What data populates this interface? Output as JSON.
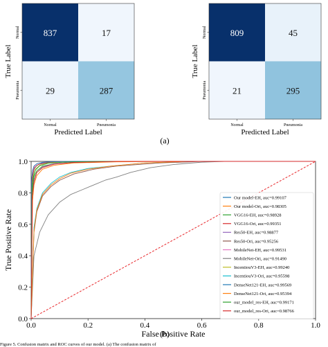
{
  "chart_data": [
    {
      "type": "heatmap",
      "panel": "a-left",
      "xlabel": "Predicted Label",
      "ylabel": "True Label",
      "x_categories": [
        "Normal",
        "Pneumonia"
      ],
      "y_categories": [
        "Normal",
        "Pneumonia"
      ],
      "matrix": [
        [
          837,
          17
        ],
        [
          29,
          287
        ]
      ],
      "colors": {
        "high": "#08306b",
        "mid": "#8fc3de",
        "low": "#f0f6fd"
      }
    },
    {
      "type": "heatmap",
      "panel": "a-right",
      "xlabel": "Predicted Label",
      "ylabel": "True Label",
      "x_categories": [
        "Normal",
        "Pneumonia"
      ],
      "y_categories": [
        "Normal",
        "Pneumonia"
      ],
      "matrix": [
        [
          809,
          45
        ],
        [
          21,
          295
        ]
      ],
      "colors": {
        "high": "#08306b",
        "mid": "#8fc3de",
        "low": "#f0f6fd"
      }
    },
    {
      "type": "line",
      "panel": "b",
      "xlabel": "False Positive Rate",
      "ylabel": "True Positive Rate",
      "xlim": [
        0,
        1
      ],
      "ylim": [
        0,
        1
      ],
      "ticks": [
        "0.0",
        "0.2",
        "0.4",
        "0.6",
        "0.8",
        "1.0"
      ],
      "legend_position": "lower-right",
      "diagonal": {
        "x": [
          0,
          1
        ],
        "y": [
          0,
          1
        ],
        "color": "#e8262a",
        "style": "dashed"
      },
      "series": [
        {
          "name": "Our model-EH, auc=0.99107",
          "color": "#1f77b4",
          "x": [
            0,
            0.002,
            0.005,
            0.01,
            0.02,
            0.04,
            0.08,
            0.15,
            0.3,
            0.5,
            1
          ],
          "y": [
            0,
            0.82,
            0.9,
            0.95,
            0.975,
            0.99,
            0.995,
            0.998,
            1,
            1,
            1
          ]
        },
        {
          "name": "Our model-Ori, auc=0.98305",
          "color": "#ff7f0e",
          "x": [
            0,
            0.005,
            0.01,
            0.02,
            0.04,
            0.08,
            0.15,
            0.3,
            0.55,
            1
          ],
          "y": [
            0,
            0.75,
            0.85,
            0.91,
            0.95,
            0.975,
            0.99,
            0.997,
            1,
            1
          ]
        },
        {
          "name": "VGG16-EH, auc=0.98928",
          "color": "#2ca02c",
          "x": [
            0,
            0.003,
            0.01,
            0.02,
            0.04,
            0.08,
            0.15,
            0.3,
            1
          ],
          "y": [
            0,
            0.8,
            0.9,
            0.94,
            0.97,
            0.985,
            0.995,
            1,
            1
          ]
        },
        {
          "name": "VGG16-Ori, auc=0.99351",
          "color": "#d62728",
          "x": [
            0,
            0.002,
            0.006,
            0.012,
            0.025,
            0.05,
            0.1,
            0.2,
            1
          ],
          "y": [
            0,
            0.85,
            0.92,
            0.96,
            0.98,
            0.99,
            0.997,
            1,
            1
          ]
        },
        {
          "name": "Res50-EH, auc=0.98877",
          "color": "#9467bd",
          "x": [
            0,
            0.004,
            0.01,
            0.02,
            0.04,
            0.08,
            0.15,
            0.3,
            1
          ],
          "y": [
            0,
            0.78,
            0.88,
            0.93,
            0.965,
            0.985,
            0.994,
            1,
            1
          ]
        },
        {
          "name": "Res50-Ori, auc=0.95256",
          "color": "#8c564b",
          "x": [
            0,
            0.01,
            0.02,
            0.04,
            0.07,
            0.1,
            0.15,
            0.22,
            0.3,
            0.45,
            0.6,
            1
          ],
          "y": [
            0,
            0.55,
            0.68,
            0.78,
            0.84,
            0.88,
            0.92,
            0.95,
            0.97,
            0.99,
            1,
            1
          ]
        },
        {
          "name": "MobileNet-EH, auc=0.99531",
          "color": "#e377c2",
          "x": [
            0,
            0.002,
            0.005,
            0.01,
            0.02,
            0.04,
            0.08,
            0.15,
            1
          ],
          "y": [
            0,
            0.88,
            0.93,
            0.965,
            0.985,
            0.993,
            0.998,
            1,
            1
          ]
        },
        {
          "name": "MobileNet-Ori, auc=0.91490",
          "color": "#7f7f7f",
          "x": [
            0,
            0.01,
            0.03,
            0.06,
            0.1,
            0.14,
            0.18,
            0.22,
            0.26,
            0.3,
            0.35,
            0.42,
            0.5,
            0.6,
            0.68,
            1
          ],
          "y": [
            0,
            0.4,
            0.55,
            0.66,
            0.74,
            0.79,
            0.82,
            0.85,
            0.88,
            0.9,
            0.93,
            0.96,
            0.98,
            0.995,
            1,
            1
          ]
        },
        {
          "name": "IncentiouV3-EH, auc=0.99240",
          "color": "#bcbd22",
          "x": [
            0,
            0.003,
            0.008,
            0.015,
            0.03,
            0.06,
            0.12,
            0.25,
            1
          ],
          "y": [
            0,
            0.84,
            0.91,
            0.95,
            0.975,
            0.99,
            0.997,
            1,
            1
          ]
        },
        {
          "name": "IncentiouV3-Ori, auc=0.95598",
          "color": "#17becf",
          "x": [
            0,
            0.01,
            0.02,
            0.04,
            0.07,
            0.1,
            0.14,
            0.2,
            0.28,
            0.4,
            0.55,
            1
          ],
          "y": [
            0,
            0.58,
            0.7,
            0.8,
            0.86,
            0.9,
            0.93,
            0.955,
            0.97,
            0.99,
            1,
            1
          ]
        },
        {
          "name": "DenseNet121-EH, auc=0.99569",
          "color": "#1f77b4",
          "x": [
            0,
            0.002,
            0.005,
            0.01,
            0.02,
            0.04,
            0.08,
            0.15,
            1
          ],
          "y": [
            0,
            0.89,
            0.94,
            0.97,
            0.985,
            0.994,
            0.998,
            1,
            1
          ]
        },
        {
          "name": "DenseNet121-Ori, auc=0.95394",
          "color": "#ff7f0e",
          "x": [
            0,
            0.01,
            0.02,
            0.04,
            0.07,
            0.1,
            0.14,
            0.2,
            0.28,
            0.4,
            0.55,
            1
          ],
          "y": [
            0,
            0.56,
            0.69,
            0.79,
            0.85,
            0.89,
            0.925,
            0.95,
            0.97,
            0.99,
            1,
            1
          ]
        },
        {
          "name": "our_model_res-EH, auc=0.99171",
          "color": "#2ca02c",
          "x": [
            0,
            0.003,
            0.008,
            0.015,
            0.03,
            0.06,
            0.12,
            0.25,
            1
          ],
          "y": [
            0,
            0.83,
            0.9,
            0.945,
            0.972,
            0.988,
            0.996,
            1,
            1
          ]
        },
        {
          "name": "our_model_res-Ori, auc=0.98766",
          "color": "#d62728",
          "x": [
            0,
            0.004,
            0.01,
            0.02,
            0.04,
            0.08,
            0.15,
            0.3,
            1
          ],
          "y": [
            0,
            0.78,
            0.87,
            0.93,
            0.96,
            0.982,
            0.993,
            1,
            1
          ]
        }
      ]
    }
  ],
  "labels": {
    "panel_a": "(a)",
    "panel_b": "(b)",
    "caption": "Figure 5. Confusion matrix and ROC curves of our model. (a) The confusion matrix of"
  }
}
